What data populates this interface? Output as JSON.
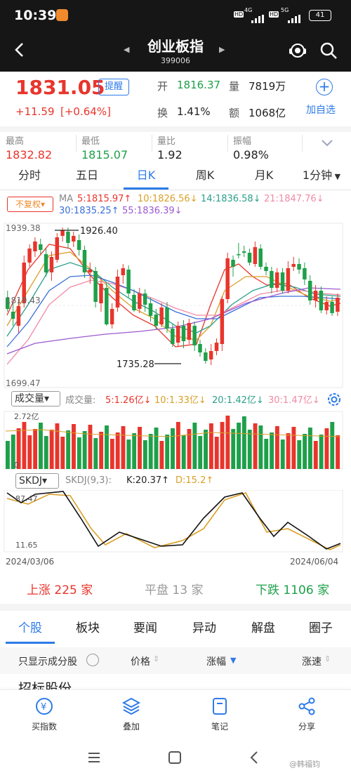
{
  "status": {
    "time": "10:39",
    "net1": "4G",
    "net2": "5G",
    "battery": "41"
  },
  "header": {
    "title": "创业板指",
    "code": "399006"
  },
  "quote": {
    "price": "1831.05",
    "remind": "提醒",
    "change": "+11.59",
    "change_pct": "[+0.64%]",
    "open_label": "开",
    "open": "1816.37",
    "volume_label": "量",
    "volume": "7819万",
    "turnover_label": "换",
    "turnover": "1.41%",
    "amount_label": "额",
    "amount": "1068亿",
    "add_fav": "加自选"
  },
  "stats": [
    {
      "label": "最高",
      "value": "1832.82"
    },
    {
      "label": "最低",
      "value": "1815.07"
    },
    {
      "label": "量比",
      "value": "1.92"
    },
    {
      "label": "振幅",
      "value": "0.98%"
    }
  ],
  "tabs": [
    "分时",
    "五日",
    "日K",
    "周K",
    "月K",
    "1分钟"
  ],
  "kline": {
    "adjust": "不复权",
    "ma_label": "MA",
    "ma5": "5:1815.97↑",
    "ma10": "10:1826.56↓",
    "ma14": "14:1836.58↓",
    "ma21": "21:1847.76↓",
    "ma30": "30:1835.25↑",
    "ma55": "55:1836.39↓",
    "y_top": "1939.38",
    "y_mid": "1819.43",
    "y_bot": "1699.47",
    "high_mark": "1926.40",
    "low_mark": "1735.28"
  },
  "volume": {
    "selector": "成交量",
    "title": "成交量:",
    "ma5": "5:1.26亿↓",
    "ma10": "10:1.33亿↓",
    "ma20": "20:1.42亿↓",
    "ma30": "30:1.47亿↓",
    "y_top": "2.72亿",
    "y_bot": "0"
  },
  "skdj": {
    "selector": "SKDJ",
    "params": "SKDJ(9,3):",
    "k": "K:20.37↑",
    "d": "D:15.2↑",
    "y_top": "87.47",
    "y_bot": "11.65",
    "date_start": "2024/03/06",
    "date_end": "2024/06/04"
  },
  "breadth": {
    "up": "上涨 225 家",
    "flat": "平盘 13 家",
    "down": "下跌 1106 家"
  },
  "bottom_tabs": [
    "个股",
    "板块",
    "要闻",
    "异动",
    "解盘",
    "圈子"
  ],
  "list_header": {
    "filter": "只显示成分股",
    "price": "价格",
    "change": "涨幅",
    "speed": "涨速"
  },
  "list_first": "招标股份",
  "toolbar": [
    "买指数",
    "叠加",
    "笔记",
    "分享"
  ],
  "watermark": "@韩福钧",
  "colors": {
    "up": "#e8352c",
    "down": "#1ea04a",
    "accent": "#2e7be8"
  },
  "chart_data": {
    "type": "candlestick",
    "ylim": [
      1699.47,
      1939.38
    ],
    "annotations": [
      {
        "label": "1926.40"
      },
      {
        "label": "1735.28"
      }
    ]
  }
}
